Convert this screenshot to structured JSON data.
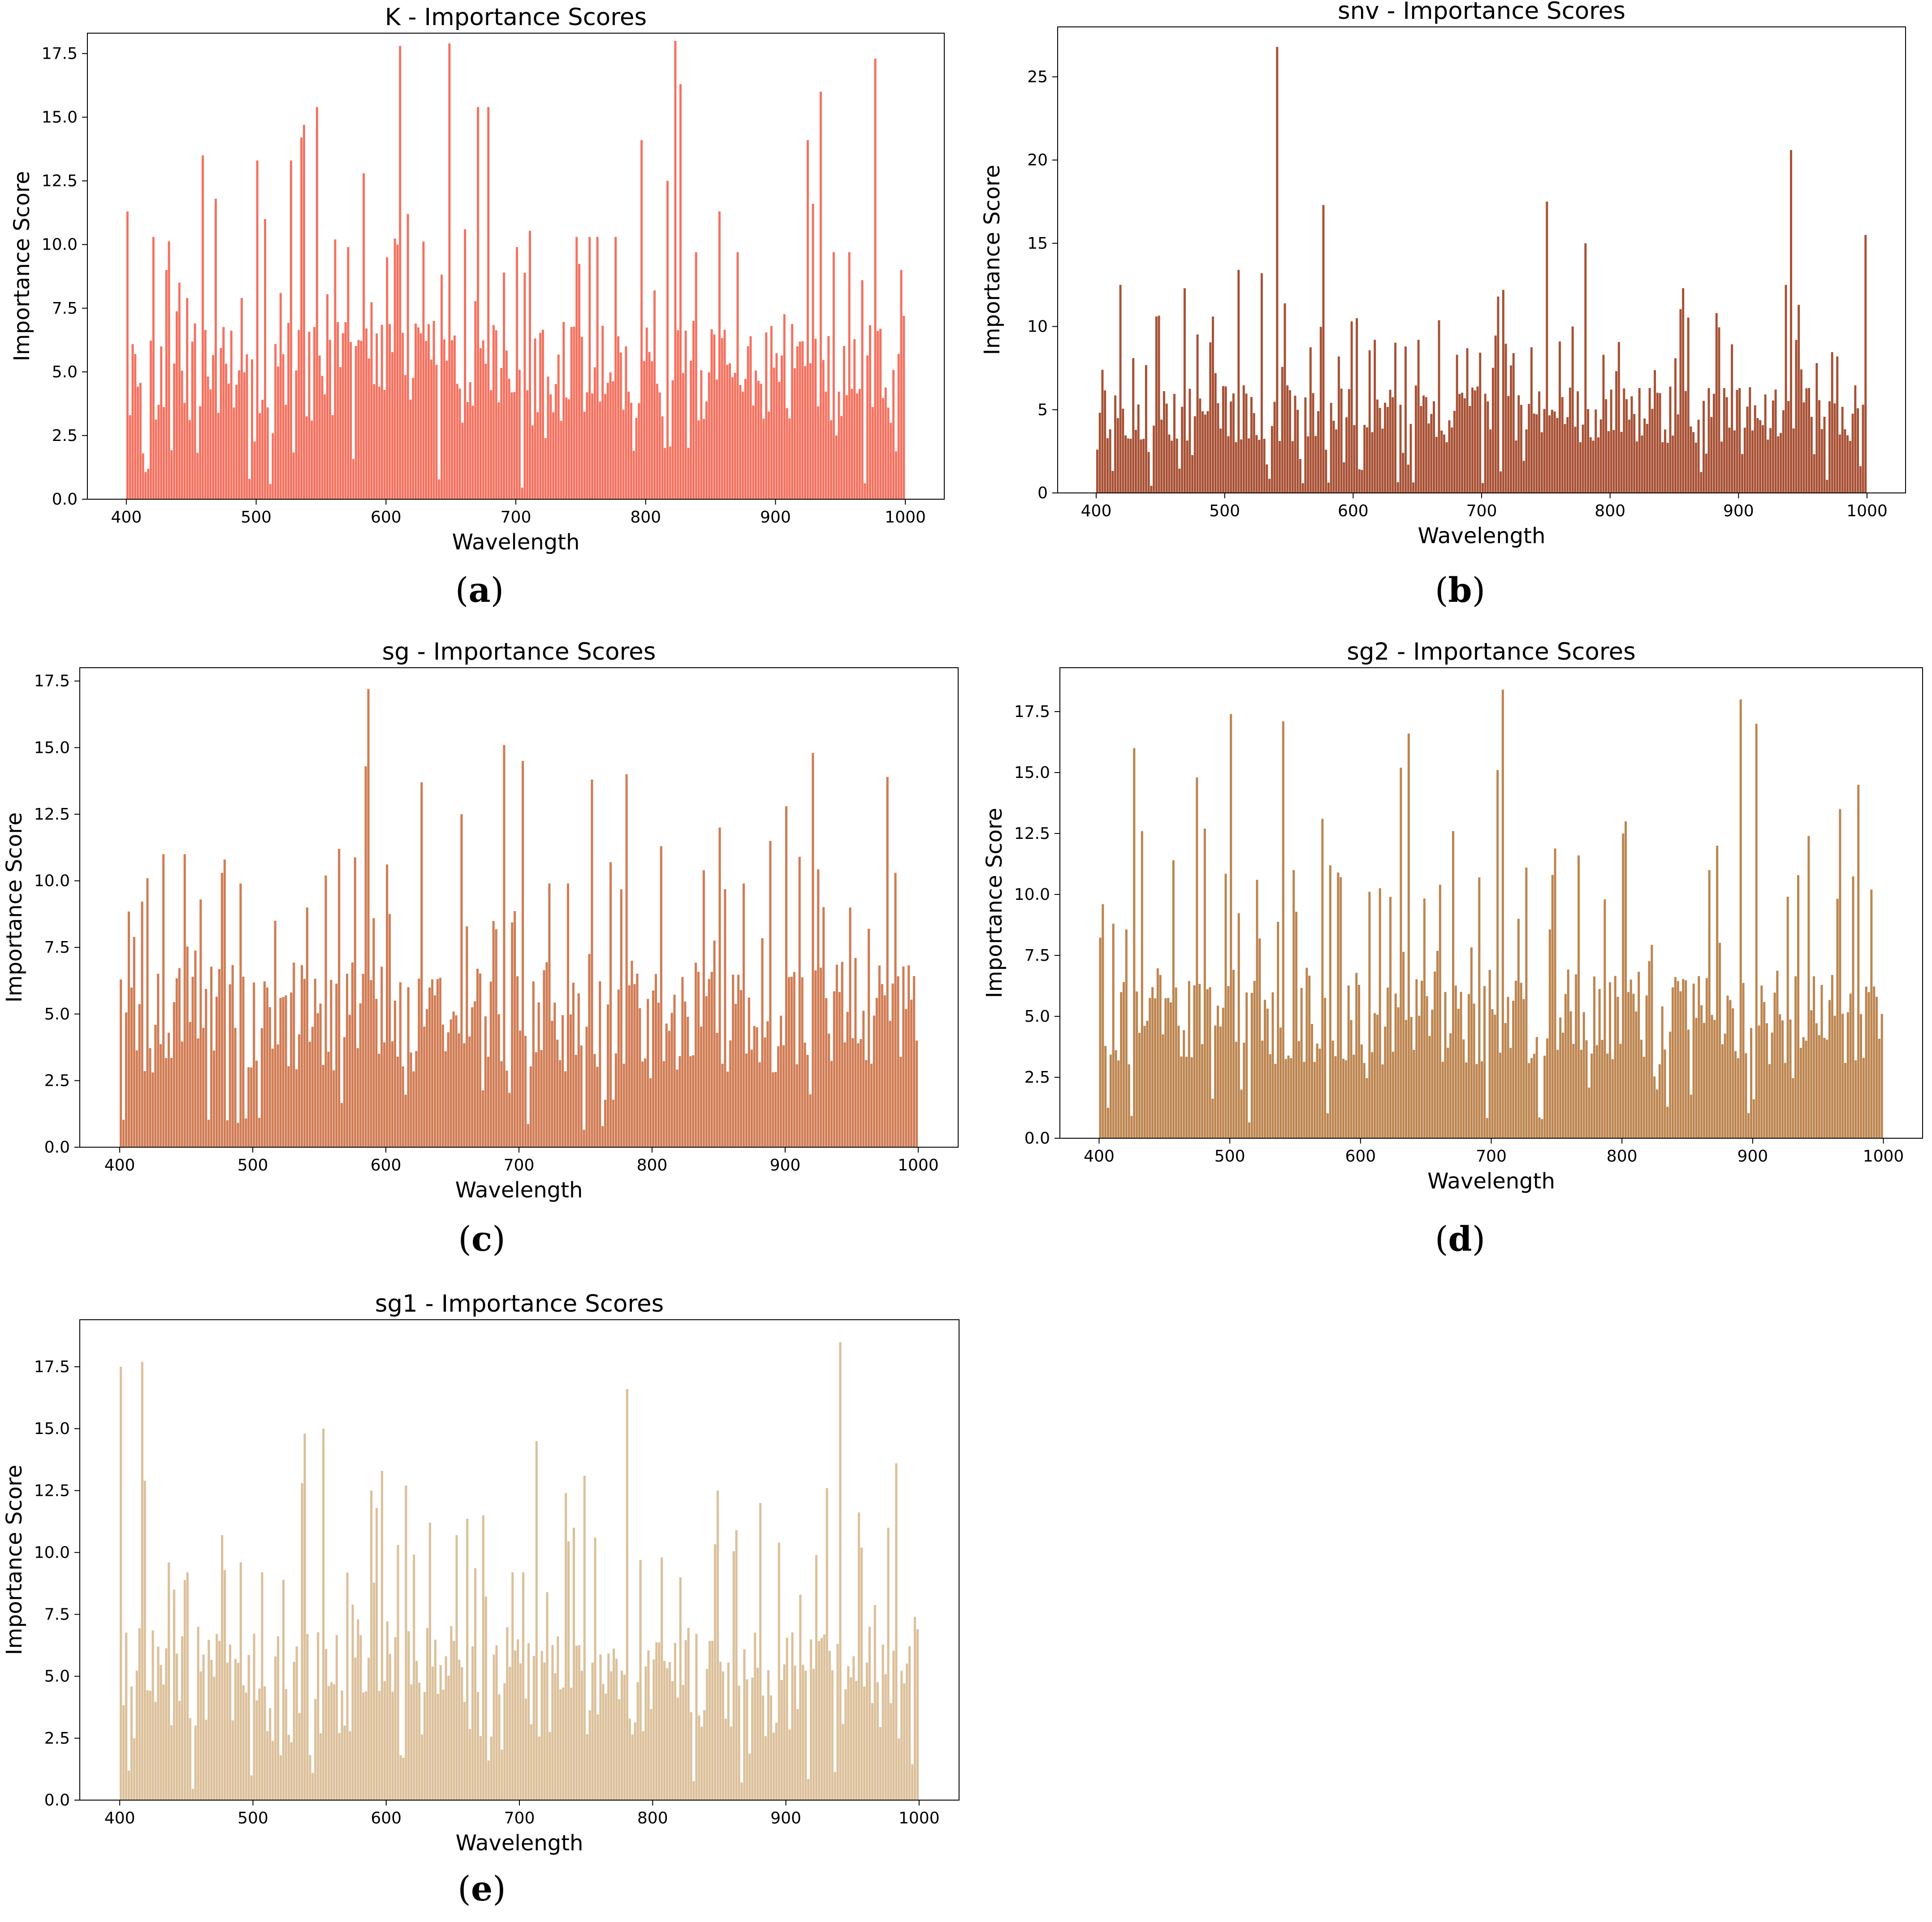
{
  "panels": [
    {
      "id": "a",
      "caption": "a",
      "color": "#F47260",
      "chart_data": {
        "type": "bar",
        "title": "K - Importance Scores",
        "xlabel": "Wavelength",
        "ylabel": "Importance Score",
        "xlim": [
          370,
          1030
        ],
        "ylim": [
          0,
          18.3
        ],
        "xticks": [
          400,
          500,
          600,
          700,
          800,
          900,
          1000
        ],
        "yticks": [
          0.0,
          2.5,
          5.0,
          7.5,
          10.0,
          12.5,
          15.0,
          17.5
        ],
        "ytick_labels": [
          "0.0",
          "2.5",
          "5.0",
          "7.5",
          "10.0",
          "12.5",
          "15.0",
          "17.5"
        ],
        "x_start": 400,
        "x_end": 1000,
        "n_bins": 300,
        "peaks": [
          [
            400,
            11.3
          ],
          [
            405,
            5.7
          ],
          [
            412,
            1.8
          ],
          [
            420,
            10.3
          ],
          [
            430,
            9.0
          ],
          [
            440,
            8.5
          ],
          [
            445,
            7.9
          ],
          [
            457,
            13.5
          ],
          [
            468,
            11.8
          ],
          [
            488,
            7.9
          ],
          [
            494,
            0.8
          ],
          [
            500,
            13.3
          ],
          [
            506,
            11.0
          ],
          [
            510,
            0.6
          ],
          [
            518,
            8.1
          ],
          [
            526,
            13.3
          ],
          [
            533,
            14.2
          ],
          [
            536,
            14.7
          ],
          [
            545,
            15.4
          ],
          [
            560,
            10.2
          ],
          [
            570,
            9.9
          ],
          [
            582,
            12.8
          ],
          [
            600,
            9.5
          ],
          [
            607,
            10.0
          ],
          [
            610,
            17.8
          ],
          [
            616,
            11.2
          ],
          [
            622,
            6.9
          ],
          [
            636,
            7.0
          ],
          [
            648,
            17.9
          ],
          [
            660,
            10.6
          ],
          [
            670,
            15.4
          ],
          [
            677,
            15.4
          ],
          [
            690,
            8.9
          ],
          [
            700,
            9.9
          ],
          [
            712,
            2.9
          ],
          [
            722,
            2.4
          ],
          [
            745,
            10.3
          ],
          [
            755,
            10.3
          ],
          [
            762,
            10.3
          ],
          [
            775,
            10.3
          ],
          [
            795,
            14.1
          ],
          [
            806,
            8.2
          ],
          [
            815,
            12.5
          ],
          [
            822,
            18.0
          ],
          [
            825,
            16.3
          ],
          [
            838,
            9.7
          ],
          [
            856,
            11.3
          ],
          [
            870,
            9.7
          ],
          [
            880,
            6.4
          ],
          [
            895,
            6.8
          ],
          [
            915,
            6.0
          ],
          [
            923,
            14.1
          ],
          [
            928,
            11.6
          ],
          [
            933,
            16.0
          ],
          [
            944,
            9.7
          ],
          [
            956,
            9.7
          ],
          [
            965,
            8.6
          ],
          [
            976,
            17.3
          ],
          [
            988,
            3.0
          ],
          [
            995,
            9.0
          ],
          [
            1000,
            7.2
          ]
        ],
        "baseline": [
          3.0,
          7.0
        ],
        "seed": 11
      }
    },
    {
      "id": "b",
      "caption": "b",
      "color": "#A85034",
      "chart_data": {
        "type": "bar",
        "title": "snv - Importance Scores",
        "xlabel": "Wavelength",
        "ylabel": "Importance Score",
        "xlim": [
          370,
          1030
        ],
        "ylim": [
          0,
          28
        ],
        "xticks": [
          400,
          500,
          600,
          700,
          800,
          900,
          1000
        ],
        "yticks": [
          0,
          5,
          10,
          15,
          20,
          25
        ],
        "ytick_labels": [
          "0",
          "5",
          "10",
          "15",
          "20",
          "25"
        ],
        "x_start": 400,
        "x_end": 1000,
        "n_bins": 300,
        "peaks": [
          [
            400,
            2.6
          ],
          [
            404,
            7.4
          ],
          [
            418,
            12.5
          ],
          [
            428,
            8.1
          ],
          [
            445,
            10.6
          ],
          [
            468,
            12.3
          ],
          [
            490,
            10.6
          ],
          [
            500,
            6.4
          ],
          [
            510,
            13.4
          ],
          [
            528,
            13.2
          ],
          [
            540,
            26.8
          ],
          [
            556,
            5.0
          ],
          [
            568,
            6.0
          ],
          [
            575,
            17.3
          ],
          [
            588,
            8.2
          ],
          [
            601,
            10.5
          ],
          [
            615,
            9.2
          ],
          [
            628,
            6.2
          ],
          [
            636,
            5.3
          ],
          [
            640,
            8.8
          ],
          [
            650,
            9.2
          ],
          [
            680,
            8.3
          ],
          [
            700,
            0.6
          ],
          [
            711,
            11.8
          ],
          [
            716,
            12.2
          ],
          [
            724,
            8.4
          ],
          [
            744,
            6.1
          ],
          [
            750,
            17.5
          ],
          [
            760,
            9.1
          ],
          [
            770,
            10.0
          ],
          [
            780,
            15.0
          ],
          [
            794,
            8.3
          ],
          [
            822,
            6.3
          ],
          [
            838,
            6.0
          ],
          [
            856,
            12.3
          ],
          [
            875,
            6.3
          ],
          [
            888,
            6.3
          ],
          [
            900,
            6.3
          ],
          [
            935,
            12.5
          ],
          [
            940,
            20.6
          ],
          [
            946,
            11.3
          ],
          [
            960,
            7.8
          ],
          [
            976,
            8.2
          ],
          [
            995,
            5.3
          ],
          [
            1000,
            15.5
          ]
        ],
        "baseline": [
          3.0,
          6.5
        ],
        "seed": 23
      }
    },
    {
      "id": "c",
      "caption": "c",
      "color": "#D17C54",
      "chart_data": {
        "type": "bar",
        "title": "sg - Importance Scores",
        "xlabel": "Wavelength",
        "ylabel": "Importance Score",
        "xlim": [
          370,
          1030
        ],
        "ylim": [
          0,
          18.0
        ],
        "xticks": [
          400,
          500,
          600,
          700,
          800,
          900,
          1000
        ],
        "yticks": [
          0.0,
          2.5,
          5.0,
          7.5,
          10.0,
          12.5,
          15.0,
          17.5
        ],
        "ytick_labels": [
          "0.0",
          "2.5",
          "5.0",
          "7.5",
          "10.0",
          "12.5",
          "15.0",
          "17.5"
        ],
        "x_start": 400,
        "x_end": 1000,
        "n_bins": 300,
        "peaks": [
          [
            400,
            6.3
          ],
          [
            420,
            10.1
          ],
          [
            432,
            11.0
          ],
          [
            448,
            11.0
          ],
          [
            460,
            9.3
          ],
          [
            476,
            10.3
          ],
          [
            478,
            10.8
          ],
          [
            490,
            9.9
          ],
          [
            515,
            8.5
          ],
          [
            540,
            9.0
          ],
          [
            553,
            10.2
          ],
          [
            563,
            11.2
          ],
          [
            584,
            14.3
          ],
          [
            586,
            17.2
          ],
          [
            590,
            8.6
          ],
          [
            605,
            5.5
          ],
          [
            626,
            13.7
          ],
          [
            655,
            12.5
          ],
          [
            688,
            15.1
          ],
          [
            701,
            14.5
          ],
          [
            722,
            9.9
          ],
          [
            735,
            9.9
          ],
          [
            754,
            13.8
          ],
          [
            768,
            10.7
          ],
          [
            780,
            14.0
          ],
          [
            806,
            11.3
          ],
          [
            838,
            10.4
          ],
          [
            850,
            12.0
          ],
          [
            868,
            9.9
          ],
          [
            887,
            11.5
          ],
          [
            900,
            12.8
          ],
          [
            910,
            10.9
          ],
          [
            920,
            14.8
          ],
          [
            948,
            9.0
          ],
          [
            976,
            13.9
          ],
          [
            982,
            10.3
          ],
          [
            1000,
            4.0
          ]
        ],
        "baseline": [
          2.8,
          7.0
        ],
        "seed": 37
      }
    },
    {
      "id": "d",
      "caption": "d",
      "color": "#BD854F",
      "chart_data": {
        "type": "bar",
        "title": "sg2 - Importance Scores",
        "xlabel": "Wavelength",
        "ylabel": "Importance Score",
        "xlim": [
          370,
          1030
        ],
        "ylim": [
          0,
          19.3
        ],
        "xticks": [
          400,
          500,
          600,
          700,
          800,
          900,
          1000
        ],
        "yticks": [
          0.0,
          2.5,
          5.0,
          7.5,
          10.0,
          12.5,
          15.0,
          17.5
        ],
        "ytick_labels": [
          "0.0",
          "2.5",
          "5.0",
          "7.5",
          "10.0",
          "12.5",
          "15.0",
          "17.5"
        ],
        "x_start": 400,
        "x_end": 1000,
        "n_bins": 300,
        "peaks": [
          [
            402,
            9.6
          ],
          [
            410,
            8.8
          ],
          [
            425,
            16.0
          ],
          [
            432,
            12.6
          ],
          [
            455,
            11.4
          ],
          [
            474,
            14.8
          ],
          [
            480,
            12.7
          ],
          [
            500,
            17.4
          ],
          [
            520,
            10.6
          ],
          [
            540,
            17.1
          ],
          [
            548,
            11.0
          ],
          [
            570,
            13.1
          ],
          [
            582,
            10.9
          ],
          [
            622,
            9.9
          ],
          [
            630,
            15.2
          ],
          [
            636,
            16.6
          ],
          [
            660,
            10.4
          ],
          [
            670,
            12.6
          ],
          [
            690,
            10.7
          ],
          [
            704,
            15.1
          ],
          [
            708,
            18.4
          ],
          [
            720,
            9.0
          ],
          [
            746,
            10.8
          ],
          [
            766,
            11.6
          ],
          [
            786,
            9.8
          ],
          [
            800,
            12.5
          ],
          [
            802,
            13.0
          ],
          [
            865,
            11.0
          ],
          [
            872,
            12.0
          ],
          [
            890,
            18.0
          ],
          [
            902,
            17.0
          ],
          [
            942,
            12.4
          ],
          [
            965,
            13.5
          ],
          [
            980,
            14.5
          ],
          [
            990,
            10.2
          ],
          [
            1000,
            5.1
          ]
        ],
        "baseline": [
          3.0,
          7.0
        ],
        "seed": 53
      }
    },
    {
      "id": "e",
      "caption": "e",
      "color": "#DCC09A",
      "chart_data": {
        "type": "bar",
        "title": "sg1 - Importance Scores",
        "xlabel": "Wavelength",
        "ylabel": "Importance Score",
        "xlim": [
          370,
          1030
        ],
        "ylim": [
          0,
          19.4
        ],
        "xticks": [
          400,
          500,
          600,
          700,
          800,
          900,
          1000
        ],
        "yticks": [
          0.0,
          2.5,
          5.0,
          7.5,
          10.0,
          12.5,
          15.0,
          17.5
        ],
        "ytick_labels": [
          "0.0",
          "2.5",
          "5.0",
          "7.5",
          "10.0",
          "12.5",
          "15.0",
          "17.5"
        ],
        "x_start": 400,
        "x_end": 1000,
        "n_bins": 300,
        "peaks": [
          [
            400,
            17.5
          ],
          [
            410,
            2.5
          ],
          [
            416,
            17.7
          ],
          [
            418,
            12.9
          ],
          [
            428,
            6.2
          ],
          [
            440,
            8.5
          ],
          [
            450,
            9.2
          ],
          [
            458,
            7.0
          ],
          [
            475,
            10.7
          ],
          [
            490,
            9.6
          ],
          [
            498,
            1.0
          ],
          [
            535,
            12.8
          ],
          [
            537,
            14.8
          ],
          [
            552,
            15.0
          ],
          [
            578,
            7.3
          ],
          [
            588,
            12.5
          ],
          [
            592,
            11.8
          ],
          [
            596,
            13.3
          ],
          [
            614,
            12.7
          ],
          [
            632,
            11.2
          ],
          [
            652,
            10.7
          ],
          [
            672,
            11.5
          ],
          [
            693,
            9.2
          ],
          [
            701,
            9.2
          ],
          [
            711,
            14.5
          ],
          [
            720,
            8.4
          ],
          [
            734,
            12.4
          ],
          [
            740,
            11.0
          ],
          [
            748,
            13.1
          ],
          [
            756,
            10.6
          ],
          [
            780,
            16.6
          ],
          [
            789,
            9.7
          ],
          [
            805,
            9.8
          ],
          [
            820,
            9.0
          ],
          [
            848,
            12.5
          ],
          [
            862,
            10.9
          ],
          [
            880,
            12.0
          ],
          [
            893,
            10.4
          ],
          [
            910,
            8.3
          ],
          [
            922,
            9.9
          ],
          [
            930,
            12.6
          ],
          [
            940,
            18.5
          ],
          [
            955,
            10.2
          ],
          [
            962,
            7.0
          ],
          [
            976,
            11.0
          ],
          [
            982,
            13.6
          ],
          [
            995,
            7.4
          ],
          [
            1000,
            6.9
          ]
        ],
        "baseline": [
          2.5,
          7.0
        ],
        "seed": 71
      }
    }
  ]
}
